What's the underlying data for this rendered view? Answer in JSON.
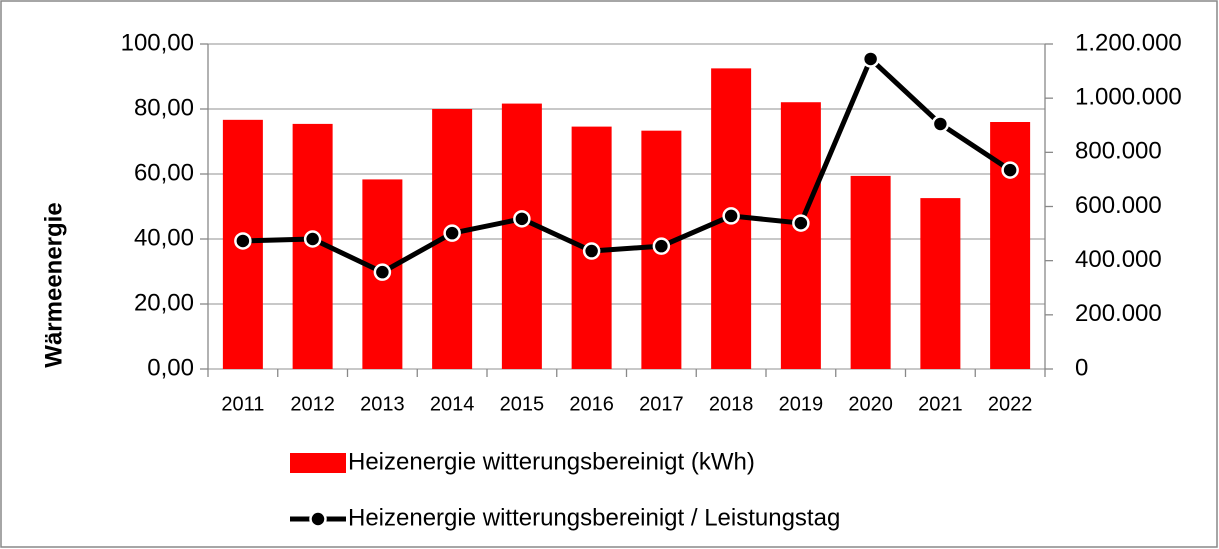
{
  "chart_data": {
    "type": "bar-line",
    "y_label": "Wärmeenergie",
    "categories": [
      "2011",
      "2012",
      "2013",
      "2014",
      "2015",
      "2016",
      "2017",
      "2018",
      "2019",
      "2020",
      "2021",
      "2022"
    ],
    "series": [
      {
        "name": "Heizenergie witterungsbereinigt (kWh)",
        "type": "bar",
        "color": "#ff0000",
        "axis": "y2",
        "values": [
          920000,
          905000,
          700000,
          960000,
          980000,
          895000,
          880000,
          1110000,
          985000,
          713000,
          631000,
          912000
        ]
      },
      {
        "name": "Heizenergie witterungsbereinigt / Leistungstag",
        "type": "line",
        "color": "#000000",
        "axis": "y",
        "values": [
          39.4,
          40.0,
          29.8,
          41.8,
          46.2,
          36.3,
          37.8,
          47.1,
          44.9,
          95.4,
          75.4,
          61.2
        ]
      }
    ],
    "ylim": [
      0,
      100
    ],
    "yticks": [
      {
        "value": 0,
        "label": "0,00"
      },
      {
        "value": 20,
        "label": "20,00"
      },
      {
        "value": 40,
        "label": "40,00"
      },
      {
        "value": 60,
        "label": "60,00"
      },
      {
        "value": 80,
        "label": "80,00"
      },
      {
        "value": 100,
        "label": "100,00"
      }
    ],
    "y2lim": [
      0,
      1200000
    ],
    "y2ticks": [
      0,
      {
        "value": 200000,
        "label": "200.000"
      },
      {
        "value": 400000,
        "label": "400.000"
      },
      {
        "value": 600000,
        "label": "600.000"
      },
      {
        "value": 800000,
        "label": "800.000"
      },
      {
        "value": 1000000,
        "label": "1.000.000"
      },
      {
        "value": 1200000,
        "label": "1.200.000"
      }
    ],
    "grid": true,
    "legend": "bottom"
  }
}
